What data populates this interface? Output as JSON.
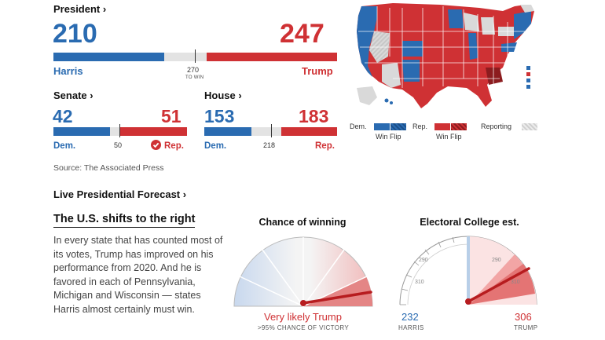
{
  "president": {
    "header": "President ›",
    "harris_votes": "210",
    "trump_votes": "247",
    "harris_name": "Harris",
    "trump_name": "Trump",
    "to_win_number": "270",
    "to_win_label": "TO WIN",
    "harris_share": 210,
    "trump_share": 247,
    "total": 538
  },
  "senate": {
    "header": "Senate ›",
    "dem_seats": "42",
    "rep_seats": "51",
    "dem_label": "Dem.",
    "rep_label": "Rep.",
    "majority": "50",
    "total": 100
  },
  "house": {
    "header": "House ›",
    "dem_seats": "153",
    "rep_seats": "183",
    "dem_label": "Dem.",
    "rep_label": "Rep.",
    "majority": "218",
    "total": 435
  },
  "source": "Source: The Associated Press",
  "map_legend": {
    "dem": "Dem.",
    "rep": "Rep.",
    "reporting": "Reporting",
    "win_flip": "Win Flip",
    "win_flip_rep": "Win Flip"
  },
  "forecast": {
    "header": "Live Presidential Forecast ›",
    "headline": "The U.S. shifts to the right",
    "body": "In every state that has counted most of its votes, Trump has improved on his performance from 2020. And he is favored in each of Pennsylvania, Michigan and Wisconsin — states Harris almost certainly must win."
  },
  "chance_gauge": {
    "title": "Chance of winning",
    "verdict": "Very likely Trump",
    "sublabel": ">95% CHANCE OF VICTORY"
  },
  "ec_gauge": {
    "title": "Electoral College est.",
    "tick_labels": [
      "310",
      "290",
      "290",
      "310"
    ],
    "harris_value": "232",
    "trump_value": "306",
    "harris_label": "HARRIS",
    "trump_label": "TRUMP"
  },
  "colors": {
    "dem": "#2a6bb1",
    "rep": "#cf3134",
    "rep_dark": "#8c1c1f",
    "neutral": "#d9d9d9"
  }
}
